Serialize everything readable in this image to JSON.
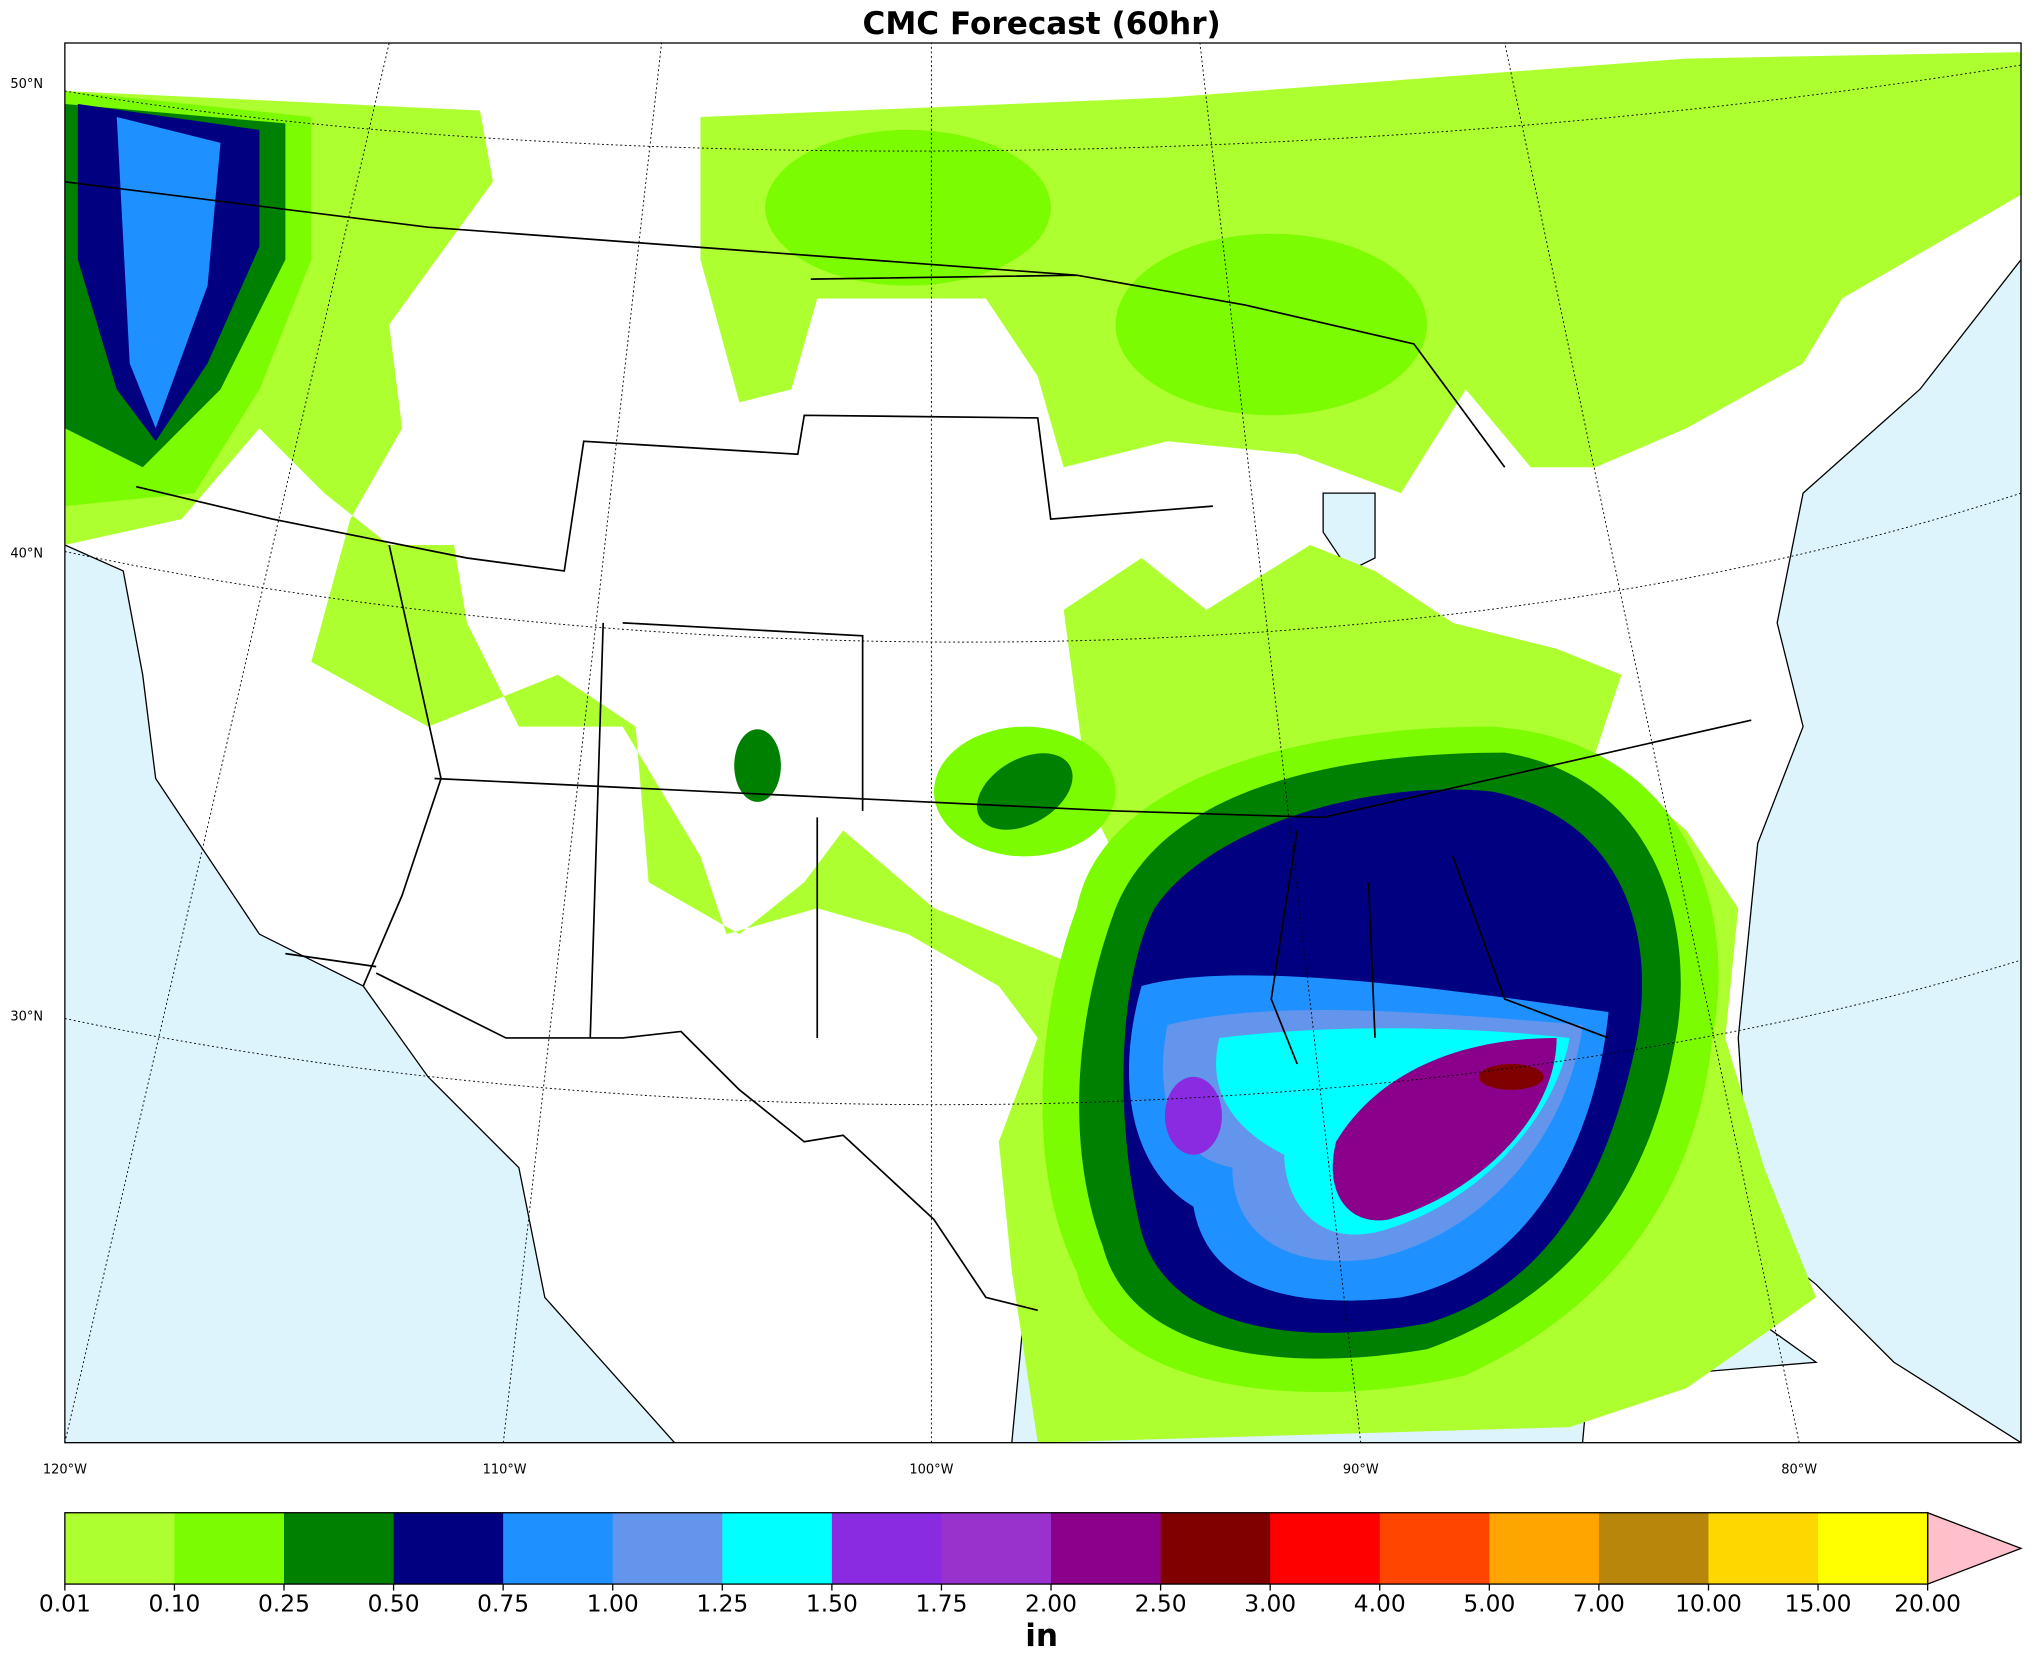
{
  "title": "CMC Forecast (60hr)",
  "map": {
    "lat_labels": [
      "50°N",
      "40°N",
      "30°N"
    ],
    "lon_labels": [
      "120°W",
      "110°W",
      "100°W",
      "90°W",
      "80°W"
    ]
  },
  "colorbar": {
    "ticks": [
      {
        "value": 0.01,
        "label": "0.01"
      },
      {
        "value": 0.1,
        "label": "0.10"
      },
      {
        "value": 0.25,
        "label": "0.25"
      },
      {
        "value": 0.5,
        "label": "0.50"
      },
      {
        "value": 0.75,
        "label": "0.75"
      },
      {
        "value": 1,
        "label": "1.00"
      },
      {
        "value": 1.25,
        "label": "1.25"
      },
      {
        "value": 1.5,
        "label": "1.50"
      },
      {
        "value": 1.75,
        "label": "1.75"
      },
      {
        "value": 2,
        "label": "2.00"
      },
      {
        "value": 2.5,
        "label": "2.50"
      },
      {
        "value": 3,
        "label": "3.00"
      },
      {
        "value": 4,
        "label": "4.00"
      },
      {
        "value": 5,
        "label": "5.00"
      },
      {
        "value": 7,
        "label": "7.00"
      },
      {
        "value": 10,
        "label": "10.00"
      },
      {
        "value": 15,
        "label": "15.00"
      },
      {
        "value": 20,
        "label": "20.00"
      }
    ],
    "colors": [
      "#adff2f",
      "#7cfc00",
      "#008000",
      "#000080",
      "#1e90ff",
      "#6495ed",
      "#00ffff",
      "#8a2be2",
      "#9932cc",
      "#8b008b",
      "#800000",
      "#ff0000",
      "#ff4500",
      "#ffa500",
      "#b8860b",
      "#ffd700",
      "#ffff00"
    ],
    "extend_color": "#ffc0cb",
    "label": "in"
  }
}
